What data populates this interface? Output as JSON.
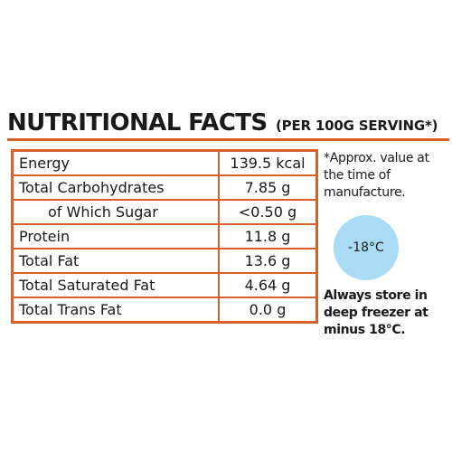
{
  "header": {
    "title": "NUTRITIONAL FACTS",
    "subtitle": "(PER 100G SERVING*)"
  },
  "table": {
    "rows": [
      {
        "name": "Energy",
        "value": "139.5 kcal"
      },
      {
        "name": "Total Carbohydrates",
        "value": "7.85 g"
      },
      {
        "name": "of Which Sugar",
        "value": "<0.50 g"
      },
      {
        "name": "Protein",
        "value": "11.8 g"
      },
      {
        "name": "Total Fat",
        "value": "13.6 g"
      },
      {
        "name": "Total Saturated Fat",
        "value": "4.64 g"
      },
      {
        "name": "Total Trans Fat",
        "value": "0.0 g"
      }
    ]
  },
  "side": {
    "note": "*Approx. value at the time of manufacture.",
    "temperature": "-18°C",
    "storage": "Always store in deep freezer at minus 18°C."
  },
  "colors": {
    "accent": "#d8602b",
    "badge": "#a9dcf4"
  }
}
